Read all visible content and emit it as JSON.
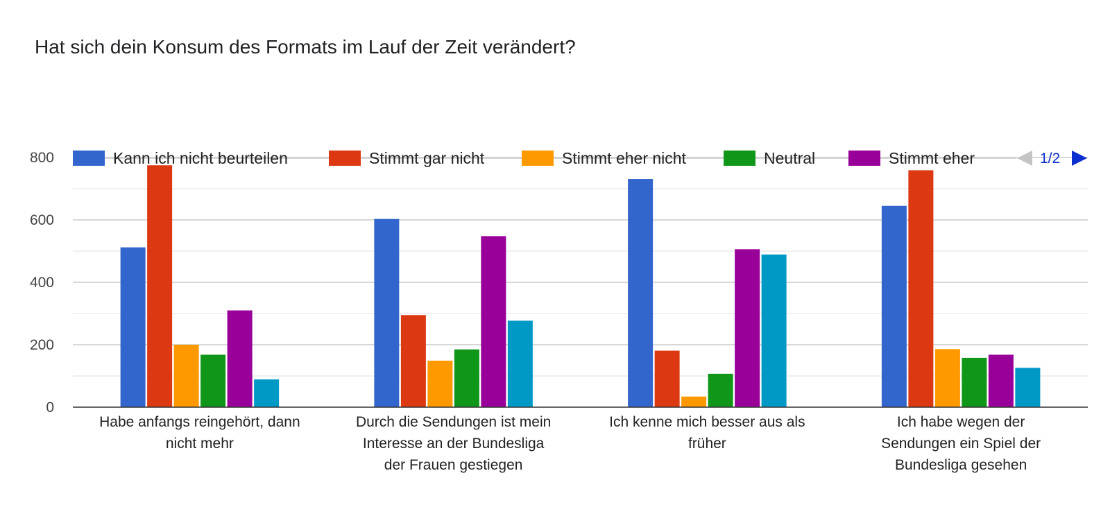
{
  "title": "Hat sich dein Konsum des Formats im Lauf der Zeit verändert?",
  "chart_data": {
    "type": "bar",
    "categories": [
      [
        "Habe anfangs reingehört, dann",
        "nicht mehr"
      ],
      [
        "Durch die Sendungen ist mein",
        "Interesse an der Bundesliga",
        "der Frauen gestiegen"
      ],
      [
        "Ich kenne mich besser aus als",
        "früher"
      ],
      [
        "Ich habe wegen der",
        "Sendungen ein Spiel der",
        "Bundesliga gesehen"
      ]
    ],
    "series": [
      {
        "name": "Kann ich nicht beurteilen",
        "color": "#3366cc",
        "values": [
          512,
          603,
          731,
          645
        ]
      },
      {
        "name": "Stimmt gar nicht",
        "color": "#dc3912",
        "values": [
          775,
          295,
          181,
          759
        ]
      },
      {
        "name": "Stimmt eher nicht",
        "color": "#ff9900",
        "values": [
          200,
          149,
          34,
          186
        ]
      },
      {
        "name": "Neutral",
        "color": "#109618",
        "values": [
          168,
          185,
          107,
          158
        ]
      },
      {
        "name": "Stimmt eher",
        "color": "#990099",
        "values": [
          310,
          548,
          506,
          168
        ]
      },
      {
        "color": "#0099c6",
        "values": [
          89,
          277,
          489,
          126
        ]
      }
    ],
    "yticks": [
      0,
      200,
      400,
      600,
      800
    ],
    "ylim": [
      0,
      800
    ],
    "legend_position": "top",
    "legend_page": "1/2",
    "grid": true
  }
}
